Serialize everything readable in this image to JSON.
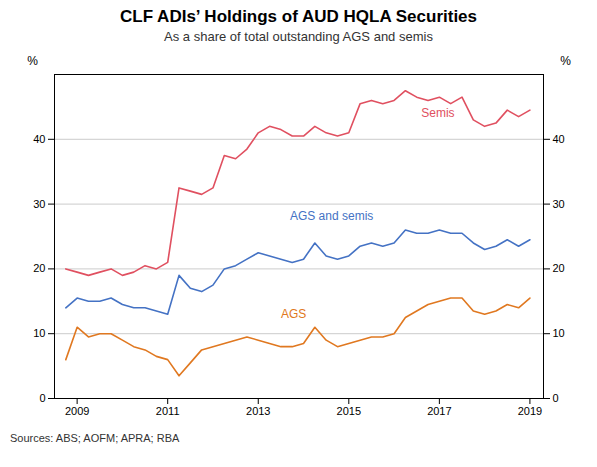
{
  "chart_data": {
    "type": "line",
    "title": "CLF ADIs’ Holdings of AUD HQLA Securities",
    "subtitle": "As a share of total outstanding AGS and semis",
    "ylabel": "%",
    "y2label": "%",
    "source": "Sources:  ABS; AOFM; APRA; RBA",
    "xlim": [
      2008.5,
      2019.3
    ],
    "xticks": [
      2009,
      2011,
      2013,
      2015,
      2017,
      2019
    ],
    "ylim": [
      0,
      50
    ],
    "yticks": [
      0,
      10,
      20,
      30,
      40
    ],
    "y2lim": [
      0,
      50
    ],
    "y2ticks": [
      0,
      10,
      20,
      30,
      40
    ],
    "grid": true,
    "x": [
      2008.75,
      2009.0,
      2009.25,
      2009.5,
      2009.75,
      2010.0,
      2010.25,
      2010.5,
      2010.75,
      2011.0,
      2011.25,
      2011.5,
      2011.75,
      2012.0,
      2012.25,
      2012.5,
      2012.75,
      2013.0,
      2013.25,
      2013.5,
      2013.75,
      2014.0,
      2014.25,
      2014.5,
      2014.75,
      2015.0,
      2015.25,
      2015.5,
      2015.75,
      2016.0,
      2016.25,
      2016.5,
      2016.75,
      2017.0,
      2017.25,
      2017.5,
      2017.75,
      2018.0,
      2018.25,
      2018.5,
      2018.75,
      2019.0
    ],
    "series": [
      {
        "name": "Semis",
        "color": "#e05060",
        "values": [
          20.0,
          19.5,
          19.0,
          19.5,
          20.0,
          19.0,
          19.5,
          20.5,
          20.0,
          21.0,
          32.5,
          32.0,
          31.5,
          32.5,
          37.5,
          37.0,
          38.5,
          41.0,
          42.0,
          41.5,
          40.5,
          40.5,
          42.0,
          41.0,
          40.5,
          41.0,
          45.5,
          46.0,
          45.5,
          46.0,
          47.5,
          46.5,
          46.0,
          46.5,
          45.5,
          46.5,
          43.0,
          42.0,
          42.5,
          44.5,
          43.5,
          44.5
        ]
      },
      {
        "name": "AGS and semis",
        "color": "#4472c4",
        "values": [
          14.0,
          15.5,
          15.0,
          15.0,
          15.5,
          14.5,
          14.0,
          14.0,
          13.5,
          13.0,
          19.0,
          17.0,
          16.5,
          17.5,
          20.0,
          20.5,
          21.5,
          22.5,
          22.0,
          21.5,
          21.0,
          21.5,
          24.0,
          22.0,
          21.5,
          22.0,
          23.5,
          24.0,
          23.5,
          24.0,
          26.0,
          25.5,
          25.5,
          26.0,
          25.5,
          25.5,
          24.0,
          23.0,
          23.5,
          24.5,
          23.5,
          24.5
        ]
      },
      {
        "name": "AGS",
        "color": "#e07820",
        "values": [
          6.0,
          11.0,
          9.5,
          10.0,
          10.0,
          9.0,
          8.0,
          7.5,
          6.5,
          6.0,
          3.5,
          5.5,
          7.5,
          8.0,
          8.5,
          9.0,
          9.5,
          9.0,
          8.5,
          8.0,
          8.0,
          8.5,
          11.0,
          9.0,
          8.0,
          8.5,
          9.0,
          9.5,
          9.5,
          10.0,
          12.5,
          13.5,
          14.5,
          15.0,
          15.5,
          15.5,
          13.5,
          13.0,
          13.5,
          14.5,
          14.0,
          15.5
        ]
      }
    ],
    "annotations": [
      {
        "text": "Semis",
        "x": 2016.6,
        "y": 43.5,
        "color": "#e05060"
      },
      {
        "text": "AGS and semis",
        "x": 2013.7,
        "y": 27.5,
        "color": "#4472c4"
      },
      {
        "text": "AGS",
        "x": 2013.5,
        "y": 12.5,
        "color": "#e07820"
      }
    ]
  }
}
